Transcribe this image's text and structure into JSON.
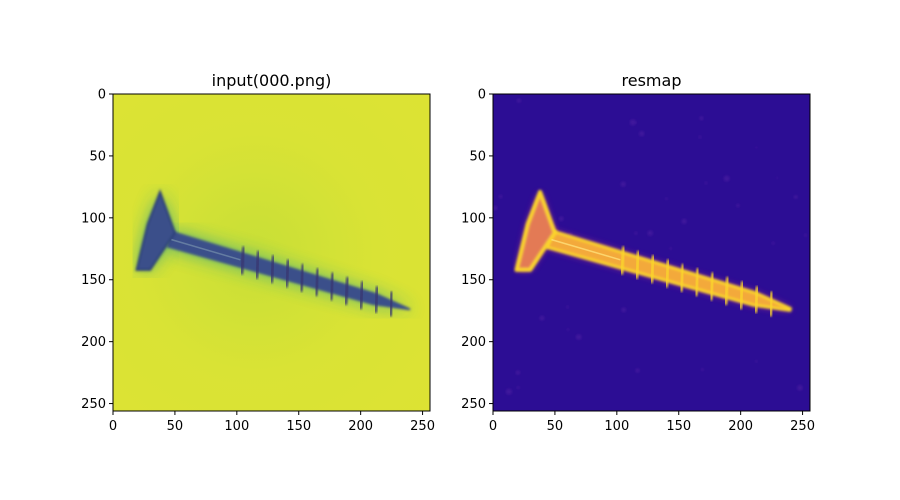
{
  "chart_data": [
    {
      "type": "heatmap",
      "title": "input(000.png)",
      "colormap": "viridis",
      "xlim": [
        0,
        256
      ],
      "ylim": [
        256,
        0
      ],
      "xticks": [
        0,
        50,
        100,
        150,
        200,
        250
      ],
      "yticks": [
        0,
        50,
        100,
        150,
        200,
        250
      ],
      "object": "screw",
      "background_color": "#dbe234",
      "object_color": "#3a4f8a",
      "glow_color": "#2aa289",
      "screw_axis": {
        "head": [
          28,
          112
        ],
        "tip": [
          240,
          174
        ]
      },
      "head_outline": [
        [
          38,
          79
        ],
        [
          50,
          112
        ],
        [
          30,
          142
        ],
        [
          19,
          142
        ],
        [
          28,
          105
        ]
      ]
    },
    {
      "type": "heatmap",
      "title": "resmap",
      "colormap": "plasma",
      "xlim": [
        0,
        256
      ],
      "ylim": [
        256,
        0
      ],
      "xticks": [
        0,
        50,
        100,
        150,
        200,
        250
      ],
      "yticks": [
        0,
        50,
        100,
        150,
        200,
        250
      ],
      "object": "screw",
      "background_color": "#2c0d94",
      "object_color": "#f3a93a",
      "edge_color": "#fbd52a",
      "screw_axis": {
        "head": [
          28,
          112
        ],
        "tip": [
          240,
          174
        ]
      },
      "head_outline": [
        [
          38,
          79
        ],
        [
          50,
          112
        ],
        [
          30,
          142
        ],
        [
          19,
          142
        ],
        [
          28,
          105
        ]
      ]
    }
  ]
}
